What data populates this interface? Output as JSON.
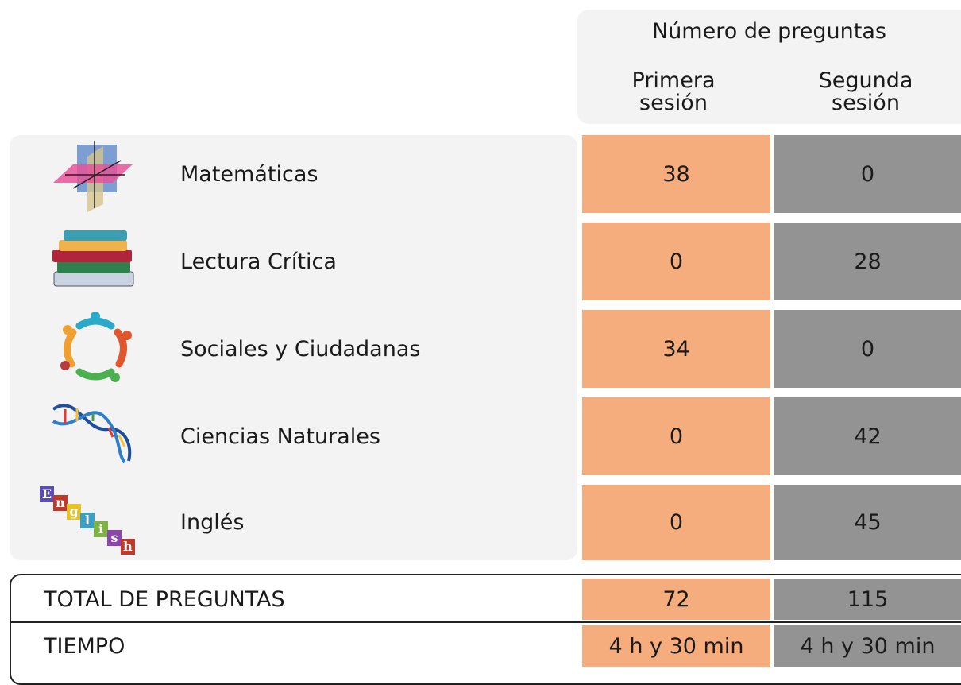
{
  "header": {
    "title": "Número de preguntas",
    "columns": [
      "Primera sesión",
      "Segunda sesión"
    ]
  },
  "rows": [
    {
      "subject": "Matemáticas",
      "first": 38,
      "second": 0
    },
    {
      "subject": "Lectura Crítica",
      "first": 0,
      "second": 28
    },
    {
      "subject": "Sociales y Ciudadanas",
      "first": 34,
      "second": 0
    },
    {
      "subject": "Ciencias Naturales",
      "first": 0,
      "second": 42
    },
    {
      "subject": "Inglés",
      "first": 0,
      "second": 45,
      "icon_letters": [
        "E",
        "n",
        "g",
        "l",
        "i",
        "s",
        "h"
      ]
    }
  ],
  "totals": {
    "label": "TOTAL DE PREGUNTAS",
    "first": 72,
    "second": 115
  },
  "time": {
    "label": "TIEMPO",
    "first": "4 h y 30 min",
    "second": "4 h y 30 min"
  }
}
